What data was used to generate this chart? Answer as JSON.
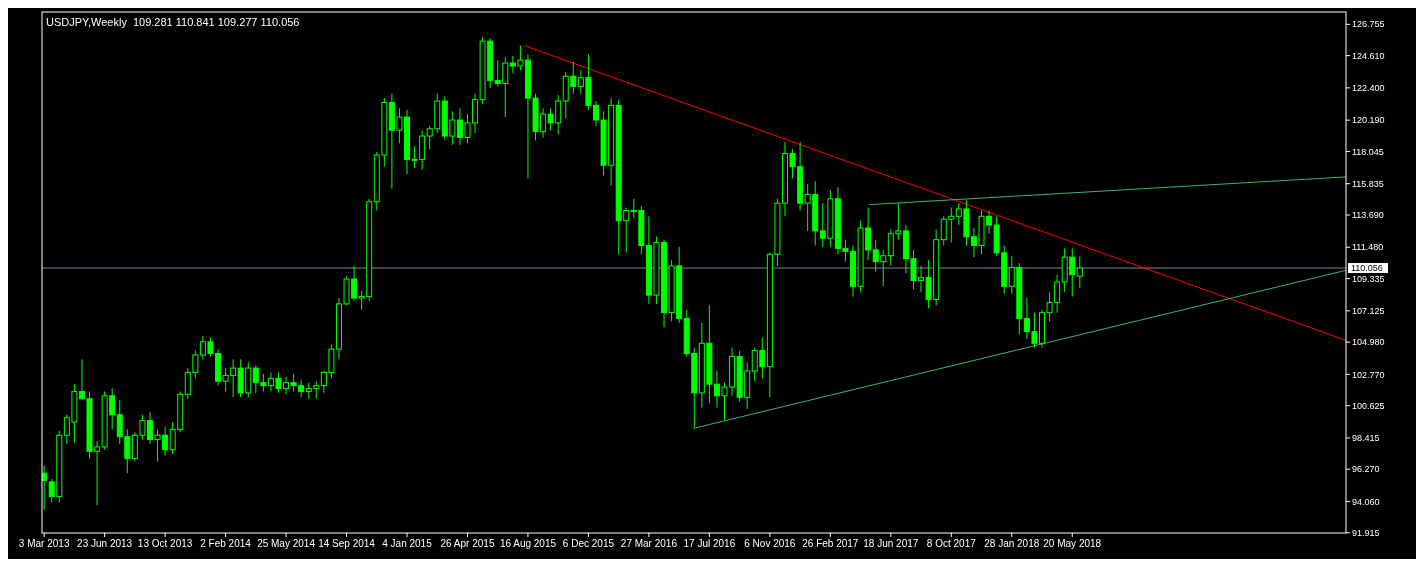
{
  "chart_data": {
    "type": "candlestick",
    "title": "USDJPY,Weekly",
    "subtitle": "109.281 110.841 109.277 110.056",
    "color": "#00ff00",
    "grid": false,
    "x": [
      "2013-03-03",
      "2013-03-17",
      "2013-03-31",
      "2013-04-14",
      "2013-04-28",
      "2013-05-12",
      "2013-05-26",
      "2013-06-09",
      "2013-06-23",
      "2013-07-07",
      "2013-07-21",
      "2013-08-04",
      "2013-08-18",
      "2013-09-01",
      "2013-09-15",
      "2013-09-29",
      "2013-10-13",
      "2013-10-27",
      "2013-11-10",
      "2013-11-24",
      "2013-12-08",
      "2013-12-22",
      "2014-01-05",
      "2014-01-19",
      "2014-02-02",
      "2014-02-16",
      "2014-03-02",
      "2014-03-16",
      "2014-03-30",
      "2014-04-13",
      "2014-04-27",
      "2014-05-11",
      "2014-05-25",
      "2014-06-08",
      "2014-06-22",
      "2014-07-06",
      "2014-07-20",
      "2014-08-03",
      "2014-08-17",
      "2014-08-31",
      "2014-09-14",
      "2014-09-28",
      "2014-10-12",
      "2014-10-26",
      "2014-11-09",
      "2014-11-23",
      "2014-12-07",
      "2014-12-21",
      "2015-01-04",
      "2015-01-18",
      "2015-02-01",
      "2015-02-15",
      "2015-03-01",
      "2015-03-15",
      "2015-03-29",
      "2015-04-12",
      "2015-04-26",
      "2015-05-10",
      "2015-05-24",
      "2015-06-07",
      "2015-06-21",
      "2015-07-05",
      "2015-07-19",
      "2015-08-02",
      "2015-08-16",
      "2015-08-30",
      "2015-09-13",
      "2015-09-27",
      "2015-10-11",
      "2015-10-25",
      "2015-11-08",
      "2015-11-22",
      "2015-12-06",
      "2015-12-20",
      "2016-01-03",
      "2016-01-17",
      "2016-01-31",
      "2016-02-14",
      "2016-02-28",
      "2016-03-13",
      "2016-03-27",
      "2016-04-10",
      "2016-04-24",
      "2016-05-08",
      "2016-05-22",
      "2016-06-05",
      "2016-06-19",
      "2016-07-03",
      "2016-07-17",
      "2016-07-31",
      "2016-08-14",
      "2016-08-28",
      "2016-09-11",
      "2016-09-25",
      "2016-10-09",
      "2016-10-23",
      "2016-11-06",
      "2016-11-20",
      "2016-12-04",
      "2016-12-18",
      "2017-01-01",
      "2017-01-15",
      "2017-01-29",
      "2017-02-12",
      "2017-02-26",
      "2017-03-12",
      "2017-03-26",
      "2017-04-09",
      "2017-04-23",
      "2017-05-07",
      "2017-05-21",
      "2017-06-04",
      "2017-06-18",
      "2017-07-02",
      "2017-07-16",
      "2017-07-30",
      "2017-08-13",
      "2017-08-27",
      "2017-09-10",
      "2017-09-24",
      "2017-10-08",
      "2017-10-22",
      "2017-11-05",
      "2017-11-19",
      "2017-12-03",
      "2017-12-17",
      "2017-12-31",
      "2018-01-14",
      "2018-01-28",
      "2018-02-11",
      "2018-02-25",
      "2018-03-11",
      "2018-03-25",
      "2018-04-08",
      "2018-04-22",
      "2018-05-06",
      "2018-05-20",
      "2018-06-03"
    ],
    "ohlc": [
      [
        96.0,
        96.5,
        93.5,
        95.5
      ],
      [
        95.4,
        95.6,
        94.0,
        94.4
      ],
      [
        94.4,
        98.9,
        94.0,
        98.6
      ],
      [
        98.6,
        100.0,
        98.0,
        99.8
      ],
      [
        99.5,
        102.1,
        98.1,
        101.6
      ],
      [
        101.6,
        103.8,
        101.0,
        101.1
      ],
      [
        101.1,
        101.6,
        97.0,
        97.5
      ],
      [
        97.5,
        98.2,
        93.8,
        97.8
      ],
      [
        97.8,
        101.6,
        97.6,
        101.3
      ],
      [
        101.3,
        101.8,
        99.0,
        100.0
      ],
      [
        100.0,
        101.0,
        98.0,
        98.5
      ],
      [
        98.5,
        99.0,
        96.0,
        97.0
      ],
      [
        97.0,
        98.8,
        96.8,
        98.6
      ],
      [
        98.6,
        100.0,
        98.3,
        99.6
      ],
      [
        99.6,
        100.2,
        98.0,
        98.3
      ],
      [
        98.3,
        99.0,
        96.8,
        98.6
      ],
      [
        98.6,
        99.2,
        97.2,
        97.6
      ],
      [
        97.6,
        99.5,
        97.3,
        99.0
      ],
      [
        99.0,
        101.6,
        98.8,
        101.4
      ],
      [
        101.4,
        103.2,
        101.1,
        102.9
      ],
      [
        102.9,
        104.4,
        102.5,
        104.1
      ],
      [
        104.1,
        105.4,
        103.8,
        105.0
      ],
      [
        105.0,
        105.3,
        104.0,
        104.2
      ],
      [
        104.2,
        104.5,
        102.0,
        102.3
      ],
      [
        102.3,
        103.2,
        101.6,
        102.7
      ],
      [
        102.7,
        103.8,
        101.2,
        103.2
      ],
      [
        103.2,
        103.8,
        101.2,
        101.5
      ],
      [
        101.5,
        103.6,
        101.2,
        103.2
      ],
      [
        103.2,
        103.4,
        101.5,
        102.2
      ],
      [
        102.2,
        102.8,
        101.6,
        102.0
      ],
      [
        102.0,
        102.9,
        101.6,
        102.5
      ],
      [
        102.5,
        102.9,
        101.5,
        101.8
      ],
      [
        101.8,
        102.6,
        101.4,
        102.2
      ],
      [
        102.2,
        102.8,
        101.6,
        102.0
      ],
      [
        102.0,
        102.4,
        101.2,
        101.6
      ],
      [
        101.6,
        102.2,
        101.1,
        101.8
      ],
      [
        101.8,
        102.3,
        101.1,
        102.0
      ],
      [
        102.0,
        103.0,
        101.5,
        102.9
      ],
      [
        102.9,
        104.8,
        102.5,
        104.5
      ],
      [
        104.5,
        108.0,
        103.8,
        107.6
      ],
      [
        107.6,
        109.5,
        107.5,
        109.3
      ],
      [
        109.3,
        110.2,
        107.8,
        108.0
      ],
      [
        108.0,
        108.5,
        107.2,
        108.1
      ],
      [
        108.1,
        114.8,
        107.8,
        114.6
      ],
      [
        114.6,
        118.0,
        114.0,
        117.8
      ],
      [
        117.8,
        121.7,
        117.0,
        121.4
      ],
      [
        121.4,
        122.0,
        115.5,
        119.5
      ],
      [
        119.5,
        121.0,
        118.6,
        120.4
      ],
      [
        120.4,
        120.9,
        116.5,
        117.5
      ],
      [
        117.5,
        118.4,
        116.9,
        117.5
      ],
      [
        117.5,
        119.5,
        116.8,
        119.1
      ],
      [
        119.1,
        119.8,
        118.2,
        119.6
      ],
      [
        119.6,
        122.0,
        119.3,
        121.5
      ],
      [
        121.5,
        121.8,
        118.8,
        119.1
      ],
      [
        119.1,
        120.8,
        118.5,
        120.2
      ],
      [
        120.2,
        121.0,
        118.5,
        119.0
      ],
      [
        119.0,
        120.6,
        118.6,
        120.0
      ],
      [
        120.0,
        122.0,
        119.3,
        121.6
      ],
      [
        121.6,
        125.9,
        121.3,
        125.6
      ],
      [
        125.6,
        125.8,
        122.4,
        122.9
      ],
      [
        122.9,
        124.3,
        122.5,
        122.7
      ],
      [
        122.7,
        124.5,
        120.4,
        124.1
      ],
      [
        124.1,
        124.6,
        123.4,
        123.9
      ],
      [
        123.9,
        125.3,
        123.6,
        124.3
      ],
      [
        124.3,
        124.7,
        116.2,
        121.7
      ],
      [
        121.7,
        122.0,
        118.8,
        119.4
      ],
      [
        119.4,
        121.0,
        119.0,
        120.6
      ],
      [
        120.6,
        121.0,
        119.5,
        120.0
      ],
      [
        120.0,
        121.9,
        119.2,
        121.5
      ],
      [
        121.5,
        123.5,
        120.3,
        123.2
      ],
      [
        123.2,
        124.2,
        122.0,
        122.5
      ],
      [
        122.5,
        123.6,
        122.0,
        123.1
      ],
      [
        123.1,
        124.7,
        120.9,
        121.2
      ],
      [
        121.2,
        121.5,
        119.8,
        120.2
      ],
      [
        120.2,
        120.8,
        116.4,
        117.1
      ],
      [
        117.1,
        121.7,
        115.7,
        121.2
      ],
      [
        121.2,
        121.6,
        111.0,
        113.3
      ],
      [
        113.3,
        114.2,
        111.1,
        114.0
      ],
      [
        114.0,
        114.8,
        113.5,
        114.0
      ],
      [
        114.0,
        114.3,
        111.0,
        111.6
      ],
      [
        111.6,
        113.6,
        107.6,
        108.2
      ],
      [
        108.2,
        112.2,
        107.6,
        111.8
      ],
      [
        111.8,
        112.0,
        106.0,
        107.0
      ],
      [
        107.0,
        110.6,
        106.4,
        110.2
      ],
      [
        110.2,
        111.5,
        106.3,
        106.6
      ],
      [
        106.6,
        107.2,
        104.0,
        104.2
      ],
      [
        104.2,
        104.6,
        99.0,
        101.5
      ],
      [
        101.5,
        106.3,
        100.5,
        104.9
      ],
      [
        104.9,
        107.5,
        100.8,
        102.1
      ],
      [
        102.1,
        103.0,
        100.5,
        101.3
      ],
      [
        101.3,
        102.2,
        99.6,
        101.9
      ],
      [
        101.9,
        104.6,
        101.3,
        104.0
      ],
      [
        104.0,
        104.4,
        100.9,
        101.2
      ],
      [
        101.2,
        103.6,
        100.4,
        103.0
      ],
      [
        103.0,
        104.6,
        102.3,
        104.4
      ],
      [
        104.4,
        105.3,
        102.5,
        103.3
      ],
      [
        103.3,
        111.1,
        101.2,
        111.0
      ],
      [
        111.0,
        114.8,
        110.2,
        114.5
      ],
      [
        114.5,
        118.7,
        113.6,
        117.9
      ],
      [
        117.9,
        118.2,
        116.2,
        117.0
      ],
      [
        117.0,
        118.7,
        114.0,
        114.5
      ],
      [
        114.5,
        115.8,
        112.6,
        115.1
      ],
      [
        115.1,
        116.0,
        111.6,
        112.6
      ],
      [
        112.6,
        114.5,
        111.5,
        112.1
      ],
      [
        112.1,
        115.4,
        111.5,
        114.8
      ],
      [
        114.8,
        115.6,
        111.0,
        111.4
      ],
      [
        111.4,
        112.0,
        110.5,
        111.2
      ],
      [
        111.2,
        111.6,
        108.1,
        108.8
      ],
      [
        108.8,
        113.3,
        108.4,
        112.8
      ],
      [
        112.8,
        114.2,
        110.6,
        111.3
      ],
      [
        111.3,
        112.0,
        109.8,
        110.5
      ],
      [
        110.5,
        111.3,
        108.8,
        110.9
      ],
      [
        110.9,
        112.7,
        110.2,
        112.4
      ],
      [
        112.4,
        114.5,
        112.0,
        112.6
      ],
      [
        112.6,
        113.0,
        109.7,
        110.7
      ],
      [
        110.7,
        111.3,
        108.6,
        109.2
      ],
      [
        109.2,
        110.2,
        108.4,
        109.4
      ],
      [
        109.4,
        110.6,
        107.3,
        107.9
      ],
      [
        107.9,
        112.7,
        107.5,
        112.0
      ],
      [
        112.0,
        113.6,
        111.6,
        113.4
      ],
      [
        113.4,
        114.2,
        111.8,
        113.6
      ],
      [
        113.6,
        114.5,
        113.0,
        114.1
      ],
      [
        114.1,
        114.7,
        111.6,
        112.2
      ],
      [
        112.2,
        112.8,
        110.8,
        111.6
      ],
      [
        111.6,
        114.0,
        111.0,
        113.6
      ],
      [
        113.6,
        114.0,
        112.4,
        113.0
      ],
      [
        113.0,
        113.6,
        110.9,
        111.1
      ],
      [
        111.1,
        111.6,
        108.3,
        108.8
      ],
      [
        108.8,
        110.9,
        108.3,
        110.1
      ],
      [
        110.1,
        110.4,
        105.5,
        106.6
      ],
      [
        106.6,
        108.0,
        105.2,
        105.7
      ],
      [
        105.7,
        107.0,
        104.6,
        104.9
      ],
      [
        104.9,
        107.2,
        104.6,
        107.0
      ],
      [
        107.0,
        108.4,
        106.4,
        107.7
      ],
      [
        107.7,
        109.6,
        107.0,
        109.1
      ],
      [
        109.1,
        111.4,
        108.4,
        110.8
      ],
      [
        110.8,
        111.4,
        108.1,
        109.6
      ],
      [
        109.5,
        110.84,
        108.7,
        110.06
      ]
    ],
    "series": [
      {
        "type": "line",
        "x": [
          "2015-08-09",
          "2019-10-09"
        ],
        "values": [
          125.3,
          105.1
        ],
        "color": "#ff0000"
      },
      {
        "type": "line",
        "x": [
          "2016-06-21",
          "2019-10-09"
        ],
        "values": [
          99.1,
          109.9
        ],
        "color": "#3cb371"
      },
      {
        "type": "line",
        "x": [
          "2017-05-09",
          "2019-10-09"
        ],
        "values": [
          114.4,
          116.3
        ],
        "color": "#3cb371"
      }
    ],
    "ref_lines": [
      {
        "axis": "y",
        "value": 110.056,
        "label": "110.056",
        "color": "#778899"
      }
    ],
    "xlim": [
      "2013-02-27",
      "2019-10-09"
    ],
    "xticks": [
      {
        "value": "2013-03-03",
        "label": "3 Mar 2013"
      },
      {
        "value": "2013-06-23",
        "label": "23 Jun 2013"
      },
      {
        "value": "2013-10-13",
        "label": "13 Oct 2013"
      },
      {
        "value": "2014-02-02",
        "label": "2 Feb 2014"
      },
      {
        "value": "2014-05-25",
        "label": "25 May 2014"
      },
      {
        "value": "2014-09-14",
        "label": "14 Sep 2014"
      },
      {
        "value": "2015-01-04",
        "label": "4 Jan 2015"
      },
      {
        "value": "2015-04-26",
        "label": "26 Apr 2015"
      },
      {
        "value": "2015-08-16",
        "label": "16 Aug 2015"
      },
      {
        "value": "2015-12-06",
        "label": "6 Dec 2015"
      },
      {
        "value": "2016-03-27",
        "label": "27 Mar 2016"
      },
      {
        "value": "2016-07-17",
        "label": "17 Jul 2016"
      },
      {
        "value": "2016-11-06",
        "label": "6 Nov 2016"
      },
      {
        "value": "2017-02-26",
        "label": "26 Feb 2017"
      },
      {
        "value": "2017-06-18",
        "label": "18 Jun 2017"
      },
      {
        "value": "2017-10-08",
        "label": "8 Oct 2017"
      },
      {
        "value": "2018-01-28",
        "label": "28 Jan 2018"
      },
      {
        "value": "2018-05-20",
        "label": "20 May 2018"
      }
    ],
    "ylim": [
      91.9,
      127.6
    ],
    "yticks": [
      126.755,
      {
        "value": 124.61,
        "label": "124.610"
      },
      {
        "value": 122.4,
        "label": "122.400"
      },
      {
        "value": 120.19,
        "label": "120.190"
      },
      118.045,
      115.835,
      {
        "value": 113.69,
        "label": "113.690"
      },
      {
        "value": 111.48,
        "label": "111.480"
      },
      109.335,
      107.125,
      {
        "value": 104.98,
        "label": "104.980"
      },
      {
        "value": 102.77,
        "label": "102.770"
      },
      100.625,
      98.415,
      {
        "value": 96.27,
        "label": "96.270"
      },
      {
        "value": 94.06,
        "label": "94.060"
      },
      91.915
    ]
  }
}
